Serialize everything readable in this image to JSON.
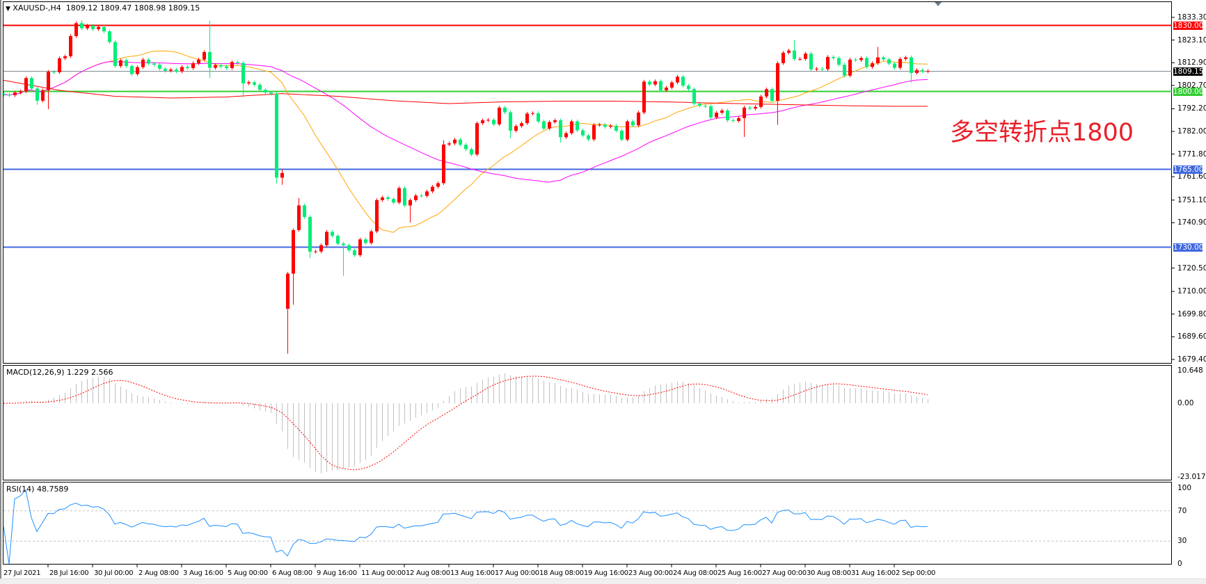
{
  "header": {
    "symbol": "XAUUSD-,H4",
    "quote": "1809.12 1809.47 1808.98 1809.15"
  },
  "annotation": "多空转折点1800",
  "colors": {
    "bull": "#ff0000",
    "bear": "#00ee76",
    "ma_fast": "#ffa500",
    "ma_mid": "#ff00ff",
    "ma_slow": "#ff0000",
    "macd_hist": "#c0c0c0",
    "macd_signal": "#ff0000",
    "rsi": "#1e90ff"
  },
  "chart_data": [
    {
      "type": "candlestick",
      "title": "XAUUSD-,H4",
      "ylim": [
        1679.4,
        1833.3
      ],
      "y_ticks": [
        "1833.30",
        "1823.10",
        "1812.90",
        "1802.70",
        "1792.20",
        "1782.00",
        "1771.80",
        "1761.60",
        "1751.10",
        "1740.90",
        "1720.50",
        "1710.00",
        "1699.80",
        "1689.60",
        "1679.40"
      ],
      "x_ticks": [
        "27 Jul 2021",
        "28 Jul 16:00",
        "30 Jul 00:00",
        "2 Aug 08:00",
        "3 Aug 16:00",
        "5 Aug 00:00",
        "6 Aug 08:00",
        "9 Aug 16:00",
        "11 Aug 00:00",
        "12 Aug 08:00",
        "13 Aug 16:00",
        "17 Aug 00:00",
        "18 Aug 08:00",
        "19 Aug 16:00",
        "23 Aug 00:00",
        "24 Aug 08:00",
        "25 Aug 16:00",
        "27 Aug 00:00",
        "30 Aug 08:00",
        "31 Aug 16:00",
        "2 Sep 00:00"
      ],
      "close": [
        1798.5,
        1798.3,
        1799.5,
        1800,
        1806,
        1801.3,
        1795.8,
        1800.5,
        1808.8,
        1808.6,
        1814.9,
        1815.8,
        1824.9,
        1830.7,
        1828.4,
        1829.6,
        1828,
        1829,
        1827,
        1822.2,
        1811.4,
        1814,
        1811.4,
        1807.8,
        1810.9,
        1814.3,
        1812.5,
        1812,
        1810.2,
        1809.3,
        1809.8,
        1809,
        1811,
        1810.5,
        1812.7,
        1814.3,
        1817.7,
        1810.6,
        1811.8,
        1811.2,
        1810.5,
        1813.2,
        1812.8,
        1803.6,
        1804.1,
        1803,
        1800.7,
        1799.5,
        1799,
        1761.2,
        1763.3,
        1718,
        1737.6,
        1748.7,
        1743.5,
        1727.9,
        1728,
        1730.8,
        1736.8,
        1735,
        1731.5,
        1730.8,
        1728.5,
        1726.3,
        1733.4,
        1731.8,
        1737,
        1751.1,
        1752.3,
        1751.6,
        1750,
        1756.5,
        1748.7,
        1751.1,
        1753.1,
        1753,
        1755,
        1757.1,
        1758.7,
        1776.1,
        1776.6,
        1778.3,
        1776,
        1774,
        1771.6,
        1785.7,
        1787,
        1787.2,
        1785.2,
        1792.7,
        1790.6,
        1782.3,
        1784.4,
        1785.7,
        1790,
        1790.2,
        1786.5,
        1783.3,
        1786.2,
        1787,
        1779.4,
        1781.2,
        1786.5,
        1782.5,
        1780.2,
        1778.4,
        1784.9,
        1785,
        1784.1,
        1784.5,
        1782.3,
        1778.3,
        1786.5,
        1784.7,
        1790.5,
        1804.4,
        1803.1,
        1804.6,
        1800.5,
        1801.7,
        1804,
        1806.6,
        1802.6,
        1801,
        1794.5,
        1793.5,
        1793.3,
        1788.3,
        1790.4,
        1791.4,
        1787,
        1786.7,
        1788,
        1792.7,
        1792.3,
        1793,
        1797.7,
        1801,
        1795.8,
        1812.7,
        1817.4,
        1818.4,
        1814.6,
        1814.6,
        1817,
        1809.9,
        1810.2,
        1810,
        1815.5,
        1815,
        1812,
        1807.1,
        1814.3,
        1814.1,
        1815,
        1811,
        1812.7,
        1815.3,
        1814.4,
        1812.5,
        1810.6,
        1814.6,
        1815.3,
        1808.3,
        1809.6,
        1809,
        1809.15
      ],
      "open_overrides": {
        "0": 1799,
        "51": 1702.2
      },
      "extremes": {
        "6": {
          "low": 1794
        },
        "8": {
          "low": 1792
        },
        "13": {
          "high": 1831.5
        },
        "14": {
          "high": 1832
        },
        "37": {
          "high": 1831.8,
          "low": 1806
        },
        "43": {
          "low": 1797.5
        },
        "49": {
          "low": 1758.5
        },
        "50": {
          "high": 1765,
          "low": 1758
        },
        "51": {
          "low": 1682
        },
        "52": {
          "low": 1704
        },
        "53": {
          "high": 1752
        },
        "55": {
          "low": 1725
        },
        "61": {
          "low": 1717
        },
        "73": {
          "low": 1741
        },
        "79": {
          "high": 1778
        },
        "91": {
          "low": 1779
        },
        "100": {
          "low": 1777
        },
        "133": {
          "low": 1779.5
        },
        "139": {
          "low": 1785
        },
        "142": {
          "high": 1823
        },
        "157": {
          "high": 1820
        },
        "163": {
          "low": 1804
        }
      },
      "ma_slow_samples": [
        1805,
        1800.5,
        1797.8,
        1797,
        1797.5,
        1799,
        1797.8,
        1795.8,
        1794.5,
        1795.3,
        1795.6,
        1795.6,
        1795.2,
        1794.6,
        1794.1,
        1793.6,
        1793.3,
        1793.3
      ],
      "levels": [
        {
          "value": 1830.0,
          "label": "1830.00",
          "color": "#ff0000"
        },
        {
          "value": 1809.15,
          "label": "1809.15",
          "color": "#000000",
          "line": "#808890"
        },
        {
          "value": 1800.0,
          "label": "1800.00",
          "color": "#32cd32"
        },
        {
          "value": 1765.0,
          "label": "1765.00",
          "color": "#4169e1"
        },
        {
          "value": 1730.0,
          "label": "1730.00",
          "color": "#4169e1"
        }
      ]
    },
    {
      "type": "bar+line",
      "title": "MACD(12,26,9) 1.229 2.566",
      "ylim": [
        -23.017,
        10.648
      ],
      "y_ticks": [
        "10.648",
        "0.00",
        "-23.017"
      ]
    },
    {
      "type": "line",
      "title": "RSI(14) 48.7589",
      "ylim": [
        0,
        100
      ],
      "y_ticks": [
        "100",
        "70",
        "30",
        "0"
      ],
      "levels": [
        70,
        30
      ]
    }
  ]
}
